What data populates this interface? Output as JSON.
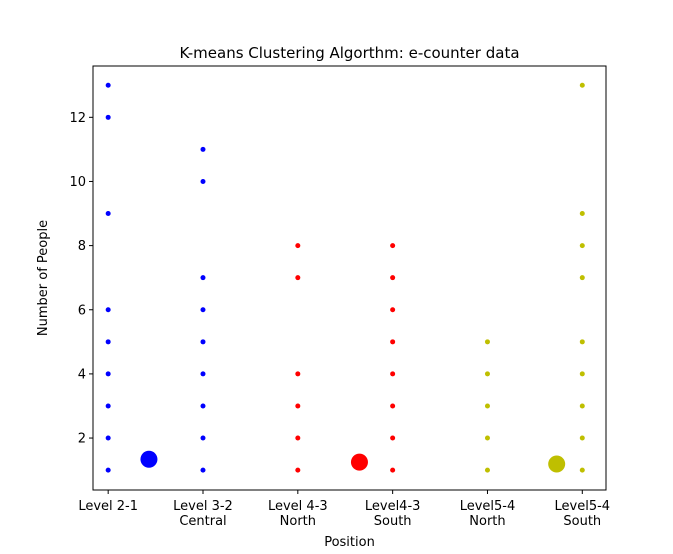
{
  "chart_data": {
    "type": "scatter",
    "title": "K-means Clustering Algorthm: e-counter data",
    "x_label": "Position",
    "y_label": "Number of People",
    "xlim": [
      -0.16,
      5.25
    ],
    "xticks": [
      {
        "value": 0,
        "label": "Level 2-1"
      },
      {
        "value": 1,
        "label": "Level 3-2\nCentral"
      },
      {
        "value": 2,
        "label": "Level 4-3\nNorth"
      },
      {
        "value": 3,
        "label": "Level4-3\nSouth"
      },
      {
        "value": 4,
        "label": "Level5-4\nNorth"
      },
      {
        "value": 5,
        "label": "Level5-4\nSouth"
      }
    ],
    "ylim": [
      0.38,
      13.6
    ],
    "yticks": [
      2,
      4,
      6,
      8,
      10,
      12
    ],
    "series": [
      {
        "color": "#0000ff",
        "marker_size": 2.5,
        "x": [
          0,
          0,
          0,
          0,
          0,
          0,
          0,
          0,
          0,
          1,
          1,
          1,
          1,
          1,
          1,
          1,
          1,
          1
        ],
        "values": [
          13,
          12,
          9,
          6,
          5,
          4,
          3,
          2,
          1,
          11,
          10,
          7,
          6,
          5,
          4,
          3,
          2,
          1
        ]
      },
      {
        "color": "#ff0000",
        "marker_size": 2.5,
        "x": [
          2,
          2,
          2,
          2,
          2,
          2,
          3,
          3,
          3,
          3,
          3,
          3,
          3,
          3
        ],
        "values": [
          8,
          7,
          4,
          3,
          2,
          1,
          8,
          7,
          6,
          5,
          4,
          3,
          2,
          1
        ]
      },
      {
        "color": "#bfbf00",
        "marker_size": 2.5,
        "x": [
          4,
          4,
          4,
          4,
          4,
          5,
          5,
          5,
          5,
          5,
          5,
          5,
          5,
          5
        ],
        "values": [
          5,
          4,
          3,
          2,
          1,
          13,
          9,
          8,
          7,
          5,
          4,
          3,
          2,
          1
        ]
      },
      {
        "color": "#0000ff",
        "marker_size": 8.5,
        "x": [
          0.43
        ],
        "values": [
          1.34
        ]
      },
      {
        "color": "#ff0000",
        "marker_size": 8.5,
        "x": [
          2.65
        ],
        "values": [
          1.25
        ]
      },
      {
        "color": "#bfbf00",
        "marker_size": 8.5,
        "x": [
          4.73
        ],
        "values": [
          1.19
        ]
      }
    ]
  }
}
